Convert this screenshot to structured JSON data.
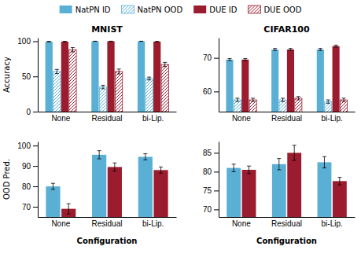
{
  "chart_data": [
    {
      "type": "bar",
      "title": "MNIST",
      "y_label": "Accuracy",
      "categories": [
        "None",
        "Residual",
        "bi-Lip."
      ],
      "series": [
        {
          "name": "NatPN ID",
          "color": "#5aafd4",
          "values": [
            99.5,
            100.0,
            100.0
          ],
          "errors": [
            0.3,
            0.1,
            0.1
          ]
        },
        {
          "name": "NatPN OOD",
          "color": "#5aafd4",
          "values": [
            57.0,
            35.0,
            47.0
          ],
          "errors": [
            3.0,
            2.5,
            2.0
          ]
        },
        {
          "name": "DUE ID",
          "color": "#9b1c2e",
          "values": [
            99.5,
            100.0,
            99.5
          ],
          "errors": [
            0.3,
            0.1,
            0.2
          ]
        },
        {
          "name": "DUE OOD",
          "color": "#9b1c2e",
          "values": [
            88.0,
            57.0,
            67.0
          ],
          "errors": [
            3.0,
            3.5,
            3.0
          ]
        }
      ],
      "ylim": [
        0,
        105
      ],
      "yticks": [
        0,
        50,
        100
      ],
      "grid": false,
      "legend": "top"
    },
    {
      "type": "bar",
      "title": "CIFAR100",
      "categories": [
        "None",
        "Residual",
        "bi-Lip."
      ],
      "series": [
        {
          "color": "#5aafd4",
          "values": [
            69.5,
            72.5,
            72.5
          ],
          "errors": [
            0.3,
            0.3,
            0.3
          ]
        },
        {
          "color": "#5aafd4",
          "values": [
            57.5,
            57.5,
            57.0
          ],
          "errors": [
            0.5,
            0.5,
            0.5
          ]
        },
        {
          "color": "#9b1c2e",
          "values": [
            69.5,
            72.5,
            73.5
          ],
          "errors": [
            0.3,
            0.3,
            0.3
          ]
        },
        {
          "color": "#9b1c2e",
          "values": [
            57.5,
            58.0,
            57.5
          ],
          "errors": [
            0.5,
            0.5,
            0.5
          ]
        }
      ],
      "ylim": [
        54,
        76
      ],
      "yticks": [
        60,
        70
      ],
      "grid": false
    },
    {
      "type": "bar",
      "y_label": "OOD Pred.",
      "x_label": "Configuration",
      "categories": [
        "None",
        "Residual",
        "bi-Lip."
      ],
      "series": [
        {
          "color": "#5aafd4",
          "values": [
            80.0,
            95.5,
            94.5
          ],
          "errors": [
            1.5,
            2.0,
            1.5
          ]
        },
        {
          "color": "#9b1c2e",
          "values": [
            69.0,
            89.5,
            88.0
          ],
          "errors": [
            2.5,
            2.0,
            1.5
          ]
        }
      ],
      "ylim": [
        65,
        102
      ],
      "yticks": [
        70,
        80,
        90,
        100
      ],
      "grid": false
    },
    {
      "type": "bar",
      "x_label": "Configuration",
      "categories": [
        "None",
        "Residual",
        "bi-Lip."
      ],
      "series": [
        {
          "color": "#5aafd4",
          "values": [
            81.0,
            82.0,
            82.5
          ],
          "errors": [
            1.0,
            1.5,
            1.5
          ]
        },
        {
          "color": "#9b1c2e",
          "values": [
            80.5,
            85.0,
            77.5
          ],
          "errors": [
            1.0,
            2.0,
            1.0
          ]
        }
      ],
      "ylim": [
        68,
        88
      ],
      "yticks": [
        70,
        75,
        80,
        85
      ],
      "grid": false
    }
  ]
}
